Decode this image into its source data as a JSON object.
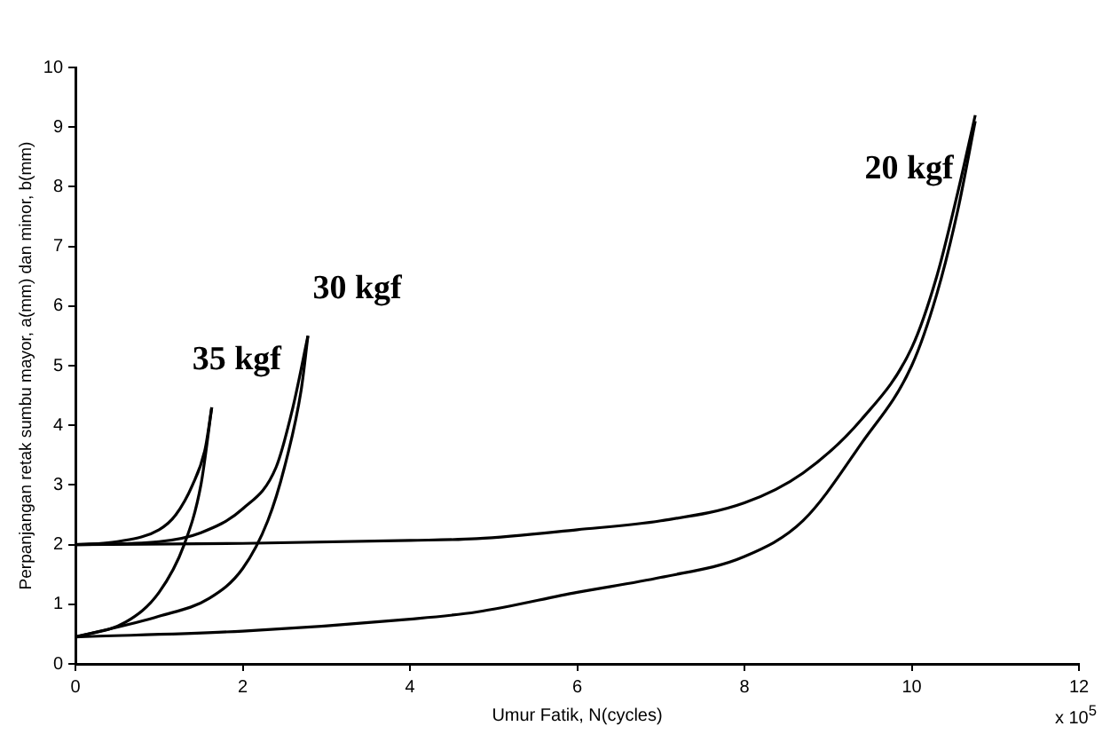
{
  "chart_data": {
    "type": "line",
    "xlabel": "Umur Fatik, N(cycles)",
    "ylabel": "Perpanjangan retak sumbu mayor, a(mm) dan minor, b(mm)",
    "xlim": [
      0,
      12
    ],
    "xticks": [
      0,
      2,
      4,
      6,
      8,
      10,
      12
    ],
    "ylim": [
      0,
      10
    ],
    "yticks": [
      0,
      1,
      2,
      3,
      4,
      5,
      6,
      7,
      8,
      9,
      10
    ],
    "grid": false,
    "legend": false,
    "marker": "none",
    "line_style": "solid",
    "series": [
      {
        "color": "#000000",
        "x": [
          0,
          2,
          4,
          4.8,
          6,
          7,
          8,
          8.7,
          9.4,
          10,
          10.3,
          10.55,
          10.76
        ],
        "values": [
          2,
          2.02,
          2.07,
          2.1,
          2.25,
          2.4,
          2.7,
          3.2,
          4.1,
          5.3,
          6.5,
          7.9,
          9.2
        ]
      },
      {
        "color": "#000000",
        "x": [
          0,
          2,
          4,
          4.8,
          6,
          7,
          8,
          8.7,
          9.4,
          10,
          10.3,
          10.55,
          10.76
        ],
        "values": [
          0.45,
          0.55,
          0.75,
          0.87,
          1.2,
          1.45,
          1.8,
          2.4,
          3.7,
          5.0,
          6.2,
          7.6,
          9.1
        ]
      },
      {
        "color": "#000000",
        "x": [
          0,
          0.5,
          1.0,
          1.2,
          1.4,
          1.55,
          1.63
        ],
        "values": [
          2,
          2.05,
          2.25,
          2.5,
          3.0,
          3.6,
          4.3
        ]
      },
      {
        "color": "#000000",
        "x": [
          0,
          0.6,
          1.0,
          1.3,
          1.5,
          1.63
        ],
        "values": [
          0.45,
          0.7,
          1.2,
          2.0,
          3.0,
          4.3
        ]
      },
      {
        "color": "#000000",
        "x": [
          0,
          1,
          1.5,
          2,
          2.4,
          2.6,
          2.78
        ],
        "values": [
          2,
          2.05,
          2.2,
          2.6,
          3.3,
          4.3,
          5.5
        ]
      },
      {
        "color": "#000000",
        "x": [
          0,
          1,
          1.6,
          2,
          2.3,
          2.5,
          2.7,
          2.78
        ],
        "values": [
          0.45,
          0.8,
          1.1,
          1.6,
          2.4,
          3.3,
          4.6,
          5.5
        ]
      }
    ],
    "annotations": [
      "35 kgf",
      "30 kgf",
      "20 kgf",
      "x 10$^{5}$"
    ]
  }
}
